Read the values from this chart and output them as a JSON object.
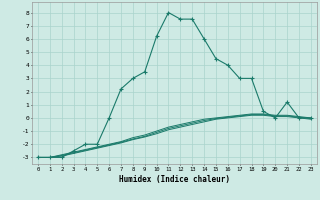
{
  "xlabel": "Humidex (Indice chaleur)",
  "background_color": "#ceeae4",
  "grid_color": "#aad4cc",
  "line_color": "#1a7a6a",
  "x_humidex": [
    0,
    1,
    2,
    3,
    4,
    5,
    6,
    7,
    8,
    9,
    10,
    11,
    12,
    13,
    14,
    15,
    16,
    17,
    18,
    19,
    20,
    21,
    22,
    23
  ],
  "y_main": [
    -3,
    -3,
    -3,
    -2.5,
    -2,
    -2,
    0,
    2.2,
    3,
    3.5,
    6.2,
    8,
    7.5,
    7.5,
    6,
    4.5,
    4,
    3,
    3,
    0.5,
    0,
    1.2,
    0,
    0
  ],
  "y_line1": [
    -3,
    -3,
    -2.8,
    -2.6,
    -2.4,
    -2.2,
    -2.0,
    -1.8,
    -1.5,
    -1.3,
    -1.0,
    -0.7,
    -0.5,
    -0.3,
    -0.1,
    0.0,
    0.1,
    0.2,
    0.3,
    0.3,
    0.2,
    0.2,
    0.1,
    0.0
  ],
  "y_line2": [
    -3,
    -3,
    -2.85,
    -2.65,
    -2.45,
    -2.25,
    -2.05,
    -1.85,
    -1.6,
    -1.4,
    -1.1,
    -0.8,
    -0.6,
    -0.4,
    -0.2,
    -0.05,
    0.05,
    0.15,
    0.25,
    0.25,
    0.15,
    0.15,
    0.05,
    -0.05
  ],
  "y_line3": [
    -3,
    -3,
    -2.9,
    -2.7,
    -2.5,
    -2.3,
    -2.1,
    -1.9,
    -1.65,
    -1.45,
    -1.2,
    -0.9,
    -0.7,
    -0.5,
    -0.3,
    -0.1,
    0.0,
    0.1,
    0.2,
    0.2,
    0.1,
    0.1,
    0.0,
    -0.1
  ],
  "ylim": [
    -3.5,
    8.8
  ],
  "xlim": [
    -0.5,
    23.5
  ],
  "yticks": [
    -3,
    -2,
    -1,
    0,
    1,
    2,
    3,
    4,
    5,
    6,
    7,
    8
  ],
  "xticks": [
    0,
    1,
    2,
    3,
    4,
    5,
    6,
    7,
    8,
    9,
    10,
    11,
    12,
    13,
    14,
    15,
    16,
    17,
    18,
    19,
    20,
    21,
    22,
    23
  ]
}
